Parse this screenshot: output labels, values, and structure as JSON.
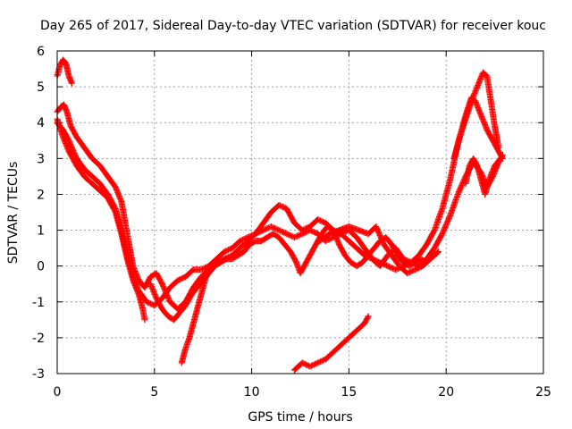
{
  "chart_data": {
    "type": "scatter",
    "title": "Day 265 of 2017, Sidereal Day-to-day VTEC variation (SDTVAR) for receiver kouc",
    "xlabel": "GPS time / hours",
    "ylabel": "SDTVAR / TECUs",
    "xlim": [
      0,
      25
    ],
    "ylim": [
      -3,
      6
    ],
    "x_ticks": [
      "0",
      "5",
      "10",
      "15",
      "20",
      "25"
    ],
    "y_ticks": [
      "-3",
      "-2",
      "-1",
      "0",
      "1",
      "2",
      "3",
      "4",
      "5",
      "6"
    ],
    "grid": true,
    "marker": "+",
    "color": "#ff0000",
    "series": [
      {
        "points": [
          [
            0.0,
            5.3
          ],
          [
            0.15,
            5.6
          ],
          [
            0.3,
            5.75
          ],
          [
            0.45,
            5.65
          ],
          [
            0.6,
            5.3
          ],
          [
            0.75,
            5.1
          ]
        ]
      },
      {
        "points": [
          [
            0.0,
            4.3
          ],
          [
            0.2,
            4.45
          ],
          [
            0.35,
            4.5
          ],
          [
            0.5,
            4.3
          ],
          [
            0.7,
            3.9
          ],
          [
            1.0,
            3.6
          ],
          [
            1.4,
            3.3
          ],
          [
            1.8,
            3.0
          ],
          [
            2.2,
            2.8
          ],
          [
            2.6,
            2.5
          ],
          [
            3.0,
            2.2
          ],
          [
            3.3,
            1.8
          ],
          [
            3.5,
            1.2
          ],
          [
            3.7,
            0.6
          ],
          [
            3.9,
            0.0
          ],
          [
            4.2,
            -0.4
          ],
          [
            4.5,
            -0.6
          ],
          [
            4.8,
            -0.3
          ],
          [
            5.1,
            -0.2
          ],
          [
            5.4,
            -0.5
          ],
          [
            5.8,
            -1.0
          ],
          [
            6.2,
            -1.2
          ],
          [
            6.6,
            -1.0
          ],
          [
            7.0,
            -0.6
          ],
          [
            7.4,
            -0.3
          ],
          [
            7.8,
            -0.1
          ],
          [
            8.2,
            0.1
          ],
          [
            8.6,
            0.2
          ],
          [
            9.0,
            0.3
          ],
          [
            9.4,
            0.5
          ],
          [
            9.8,
            0.7
          ],
          [
            10.2,
            0.9
          ],
          [
            10.6,
            1.2
          ],
          [
            11.0,
            1.5
          ],
          [
            11.4,
            1.7
          ],
          [
            11.8,
            1.6
          ],
          [
            12.2,
            1.2
          ],
          [
            12.6,
            1.0
          ],
          [
            13.0,
            1.1
          ],
          [
            13.4,
            1.3
          ],
          [
            13.8,
            1.2
          ],
          [
            14.2,
            1.0
          ],
          [
            14.6,
            0.9
          ],
          [
            15.0,
            1.0
          ],
          [
            15.4,
            0.8
          ],
          [
            15.8,
            0.5
          ],
          [
            16.2,
            0.2
          ],
          [
            16.6,
            0.0
          ],
          [
            17.0,
            0.3
          ],
          [
            17.4,
            0.5
          ],
          [
            17.8,
            0.2
          ],
          [
            18.2,
            0.1
          ],
          [
            18.6,
            0.3
          ],
          [
            19.0,
            0.6
          ],
          [
            19.4,
            1.0
          ],
          [
            19.8,
            1.6
          ],
          [
            20.2,
            2.4
          ],
          [
            20.6,
            3.4
          ],
          [
            21.0,
            4.2
          ],
          [
            21.3,
            4.7
          ],
          [
            21.5,
            4.6
          ],
          [
            21.8,
            4.2
          ],
          [
            22.1,
            3.8
          ],
          [
            22.4,
            3.5
          ],
          [
            22.7,
            3.2
          ],
          [
            22.9,
            3.0
          ]
        ]
      },
      {
        "points": [
          [
            0.0,
            4.0
          ],
          [
            0.3,
            3.8
          ],
          [
            0.6,
            3.5
          ],
          [
            1.0,
            3.0
          ],
          [
            1.4,
            2.7
          ],
          [
            1.8,
            2.5
          ],
          [
            2.2,
            2.3
          ],
          [
            2.6,
            2.0
          ],
          [
            3.0,
            1.6
          ],
          [
            3.3,
            1.0
          ],
          [
            3.6,
            0.3
          ],
          [
            3.9,
            -0.3
          ],
          [
            4.2,
            -0.7
          ],
          [
            4.6,
            -1.0
          ],
          [
            5.0,
            -1.1
          ],
          [
            5.4,
            -0.9
          ],
          [
            5.8,
            -0.6
          ],
          [
            6.2,
            -0.4
          ],
          [
            6.6,
            -0.3
          ],
          [
            7.0,
            -0.1
          ],
          [
            7.4,
            -0.1
          ],
          [
            7.8,
            0.0
          ],
          [
            8.2,
            0.2
          ],
          [
            8.6,
            0.4
          ],
          [
            9.0,
            0.5
          ],
          [
            9.4,
            0.7
          ],
          [
            9.8,
            0.8
          ],
          [
            10.2,
            0.9
          ],
          [
            10.6,
            1.0
          ],
          [
            11.0,
            1.1
          ],
          [
            11.4,
            1.0
          ],
          [
            11.8,
            0.9
          ],
          [
            12.2,
            0.8
          ],
          [
            12.6,
            0.9
          ],
          [
            13.0,
            1.0
          ],
          [
            13.4,
            0.9
          ],
          [
            13.8,
            0.7
          ],
          [
            14.2,
            0.8
          ],
          [
            14.6,
            0.9
          ],
          [
            15.0,
            0.7
          ],
          [
            15.4,
            0.5
          ],
          [
            15.8,
            0.3
          ],
          [
            16.2,
            0.2
          ],
          [
            16.6,
            0.1
          ],
          [
            17.0,
            0.0
          ],
          [
            17.4,
            -0.1
          ],
          [
            17.8,
            0.0
          ],
          [
            18.2,
            0.1
          ],
          [
            18.6,
            0.0
          ],
          [
            19.0,
            0.2
          ],
          [
            19.4,
            0.5
          ],
          [
            19.8,
            0.9
          ],
          [
            20.2,
            1.4
          ],
          [
            20.6,
            2.0
          ],
          [
            21.0,
            2.5
          ],
          [
            21.4,
            2.9
          ],
          [
            21.8,
            2.6
          ],
          [
            22.1,
            2.2
          ],
          [
            22.4,
            2.5
          ],
          [
            22.7,
            2.9
          ],
          [
            22.9,
            3.1
          ]
        ]
      },
      {
        "points": [
          [
            0.0,
            4.1
          ],
          [
            0.3,
            3.6
          ],
          [
            0.6,
            3.2
          ],
          [
            1.0,
            2.8
          ],
          [
            1.4,
            2.5
          ],
          [
            1.8,
            2.3
          ],
          [
            2.2,
            2.1
          ],
          [
            2.6,
            1.9
          ],
          [
            3.0,
            1.5
          ],
          [
            3.3,
            0.9
          ],
          [
            3.6,
            0.2
          ],
          [
            3.9,
            -0.4
          ],
          [
            4.2,
            -0.8
          ],
          [
            4.4,
            -1.2
          ],
          [
            4.5,
            -1.5
          ]
        ]
      },
      {
        "points": [
          [
            4.8,
            -0.5
          ],
          [
            5.1,
            -0.9
          ],
          [
            5.4,
            -1.2
          ],
          [
            5.7,
            -1.4
          ],
          [
            6.0,
            -1.5
          ],
          [
            6.3,
            -1.3
          ],
          [
            6.6,
            -1.1
          ],
          [
            6.9,
            -0.8
          ],
          [
            7.2,
            -0.6
          ],
          [
            7.5,
            -0.4
          ],
          [
            7.8,
            -0.2
          ],
          [
            8.1,
            0.0
          ],
          [
            8.4,
            0.1
          ],
          [
            8.7,
            0.2
          ],
          [
            9.0,
            0.2
          ],
          [
            9.3,
            0.3
          ],
          [
            9.6,
            0.4
          ],
          [
            9.9,
            0.6
          ],
          [
            10.2,
            0.7
          ],
          [
            10.5,
            0.7
          ],
          [
            10.8,
            0.8
          ],
          [
            11.1,
            0.9
          ],
          [
            11.4,
            0.8
          ],
          [
            11.7,
            0.6
          ],
          [
            12.0,
            0.4
          ],
          [
            12.3,
            0.1
          ],
          [
            12.5,
            -0.2
          ],
          [
            12.7,
            0.0
          ],
          [
            13.0,
            0.3
          ],
          [
            13.3,
            0.6
          ],
          [
            13.6,
            0.9
          ],
          [
            13.9,
            1.1
          ],
          [
            14.2,
            1.0
          ],
          [
            14.5,
            0.6
          ],
          [
            14.8,
            0.3
          ],
          [
            15.1,
            0.1
          ],
          [
            15.4,
            0.0
          ],
          [
            15.7,
            0.1
          ],
          [
            16.0,
            0.3
          ],
          [
            16.3,
            0.5
          ],
          [
            16.6,
            0.7
          ],
          [
            16.9,
            0.8
          ],
          [
            17.2,
            0.6
          ],
          [
            17.5,
            0.3
          ],
          [
            17.8,
            0.1
          ],
          [
            18.1,
            0.0
          ],
          [
            18.4,
            0.1
          ],
          [
            18.7,
            0.2
          ],
          [
            19.0,
            0.1
          ]
        ]
      },
      {
        "points": [
          [
            6.4,
            -2.7
          ],
          [
            6.6,
            -2.3
          ],
          [
            6.8,
            -2.0
          ],
          [
            7.0,
            -1.6
          ],
          [
            7.2,
            -1.2
          ],
          [
            7.4,
            -0.8
          ],
          [
            7.6,
            -0.4
          ],
          [
            7.8,
            -0.1
          ],
          [
            8.0,
            0.1
          ],
          [
            8.2,
            0.2
          ]
        ]
      },
      {
        "points": [
          [
            12.2,
            -2.9
          ],
          [
            12.6,
            -2.7
          ],
          [
            13.0,
            -2.8
          ],
          [
            13.4,
            -2.7
          ],
          [
            13.8,
            -2.6
          ],
          [
            14.2,
            -2.4
          ],
          [
            14.6,
            -2.2
          ],
          [
            15.0,
            -2.0
          ],
          [
            15.4,
            -1.8
          ],
          [
            15.8,
            -1.6
          ],
          [
            16.0,
            -1.4
          ]
        ]
      },
      {
        "points": [
          [
            21.0,
            2.3
          ],
          [
            21.2,
            2.8
          ],
          [
            21.4,
            3.0
          ],
          [
            21.6,
            2.8
          ],
          [
            21.8,
            2.4
          ],
          [
            22.0,
            2.0
          ],
          [
            22.2,
            2.4
          ],
          [
            22.5,
            2.8
          ],
          [
            22.8,
            3.0
          ]
        ]
      },
      {
        "points": [
          [
            20.4,
            3.0
          ],
          [
            20.7,
            3.6
          ],
          [
            21.0,
            4.1
          ],
          [
            21.3,
            4.6
          ],
          [
            21.6,
            5.0
          ],
          [
            21.9,
            5.4
          ],
          [
            22.1,
            5.3
          ],
          [
            22.3,
            4.6
          ],
          [
            22.5,
            3.9
          ],
          [
            22.7,
            3.3
          ]
        ]
      },
      {
        "points": [
          [
            13.5,
            0.7
          ],
          [
            14.0,
            0.9
          ],
          [
            14.5,
            1.0
          ],
          [
            15.0,
            1.1
          ],
          [
            15.5,
            1.0
          ],
          [
            16.0,
            0.9
          ],
          [
            16.4,
            1.1
          ],
          [
            16.8,
            0.6
          ],
          [
            17.2,
            0.3
          ],
          [
            17.6,
            0.0
          ],
          [
            18.0,
            -0.2
          ],
          [
            18.4,
            -0.1
          ],
          [
            18.8,
            0.0
          ],
          [
            19.2,
            0.2
          ],
          [
            19.6,
            0.4
          ]
        ]
      }
    ]
  }
}
